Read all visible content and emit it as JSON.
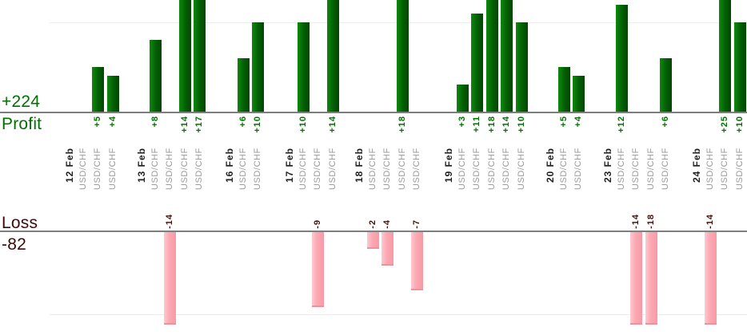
{
  "chart_data": {
    "type": "bar",
    "title": "",
    "profit": {
      "total_label": "+224",
      "axis_label": "Profit",
      "text_color": "#007000",
      "bar_color": "#056105",
      "gridline_value": 10,
      "ylim": [
        0,
        12.5
      ]
    },
    "loss": {
      "total_label": "-82",
      "axis_label": "Loss",
      "text_color": "#4a0e0e",
      "bar_color": "#fbaab4",
      "gridline_value": -10,
      "ylim": [
        -11.2,
        0
      ]
    },
    "groups": [
      {
        "date": "12 Feb",
        "trades": [
          {
            "instrument": "USD/CHF",
            "value": null,
            "label": ""
          },
          {
            "instrument": "USD/CHF",
            "value": 5,
            "label": "+5"
          },
          {
            "instrument": "USD/CHF",
            "value": 4,
            "label": "+4"
          }
        ]
      },
      {
        "date": "13 Feb",
        "trades": [
          {
            "instrument": "USD/CHF",
            "value": 8,
            "label": "+8"
          },
          {
            "instrument": "USD/CHF",
            "value": -14,
            "label": "-14"
          },
          {
            "instrument": "USD/CHF",
            "value": 14,
            "label": "+14"
          },
          {
            "instrument": "USD/CHF",
            "value": 17,
            "label": "+17"
          }
        ]
      },
      {
        "date": "16 Feb",
        "trades": [
          {
            "instrument": "USD/CHF",
            "value": 6,
            "label": "+6"
          },
          {
            "instrument": "USD/CHF",
            "value": 10,
            "label": "+10"
          }
        ]
      },
      {
        "date": "17 Feb",
        "trades": [
          {
            "instrument": "USD/CHF",
            "value": 10,
            "label": "+10"
          },
          {
            "instrument": "USD/CHF",
            "value": -9,
            "label": "-9"
          },
          {
            "instrument": "USD/CHF",
            "value": 14,
            "label": "+14"
          }
        ]
      },
      {
        "date": "18 Feb",
        "trades": [
          {
            "instrument": "USD/CHF",
            "value": -2,
            "label": "-2"
          },
          {
            "instrument": "USD/CHF",
            "value": -4,
            "label": "-4"
          },
          {
            "instrument": "USD/CHF",
            "value": 18,
            "label": "+18"
          },
          {
            "instrument": "USD/CHF",
            "value": -7,
            "label": "-7"
          }
        ]
      },
      {
        "date": "19 Feb",
        "trades": [
          {
            "instrument": "USD/CHF",
            "value": 3,
            "label": "+3"
          },
          {
            "instrument": "USD/CHF",
            "value": 11,
            "label": "+11"
          },
          {
            "instrument": "USD/CHF",
            "value": 18,
            "label": "+18"
          },
          {
            "instrument": "USD/CHF",
            "value": 14,
            "label": "+14"
          },
          {
            "instrument": "USD/CHF",
            "value": 10,
            "label": "+10"
          }
        ]
      },
      {
        "date": "20 Feb",
        "trades": [
          {
            "instrument": "USD/CHF",
            "value": 5,
            "label": "+5"
          },
          {
            "instrument": "USD/CHF",
            "value": 4,
            "label": "+4"
          }
        ]
      },
      {
        "date": "23 Feb",
        "trades": [
          {
            "instrument": "USD/CHF",
            "value": 12,
            "label": "+12"
          },
          {
            "instrument": "USD/CHF",
            "value": -14,
            "label": "-14"
          },
          {
            "instrument": "USD/CHF",
            "value": -18,
            "label": "-18"
          },
          {
            "instrument": "USD/CHF",
            "value": 6,
            "label": "+6"
          }
        ]
      },
      {
        "date": "24 Feb",
        "trades": [
          {
            "instrument": "USD/CHF",
            "value": -14,
            "label": "-14"
          },
          {
            "instrument": "USD/CHF",
            "value": 25,
            "label": "+25"
          },
          {
            "instrument": "USD/CHF",
            "value": 10,
            "label": "+10"
          }
        ]
      }
    ]
  }
}
